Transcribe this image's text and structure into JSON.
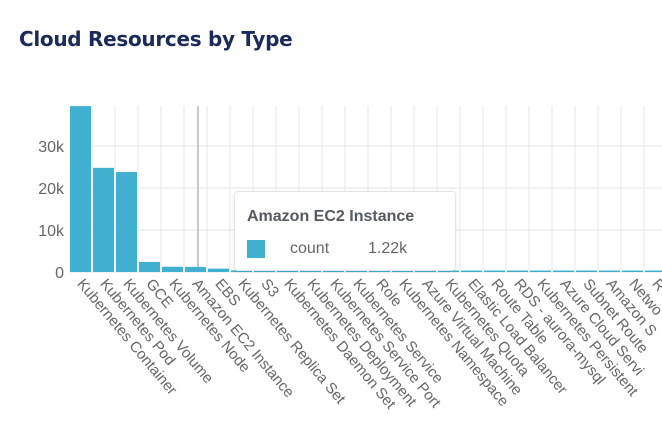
{
  "title": "Cloud Resources by Type",
  "colors": {
    "bar": "#3fb0cf",
    "title": "#1b2a5a",
    "grid": "#e6e6ea",
    "label": "#666666"
  },
  "chart_data": {
    "type": "bar",
    "title": "Cloud Resources by Type",
    "xlabel": "",
    "ylabel": "",
    "ylim": [
      0,
      39500
    ],
    "yticks": [
      0,
      10000,
      20000,
      30000
    ],
    "ytick_labels": [
      "0",
      "10k",
      "20k",
      "30k"
    ],
    "grid": true,
    "categories": [
      "Kubernetes Container",
      "Kubernetes Pod",
      "Kubernetes Volume",
      "GCE",
      "Kubernetes Node",
      "Amazon EC2 Instance",
      "EBS",
      "Kubernetes Replica Set",
      "S3",
      "Kubernetes Daemon Set",
      "Kubernetes Deployment",
      "Kubernetes Service Port",
      "Kubernetes Service",
      "Role",
      "Kubernetes Namespace",
      "Azure Virtual Machine",
      "Kubernetes Quota",
      "Elastic Load Balancer",
      "Route Table",
      "RDS - aurora-mysql",
      "Kubernetes Persistent",
      "Azure Cloud Servi",
      "Subnet Route",
      "Amazon S",
      "Netwo",
      "R"
    ],
    "series": [
      {
        "name": "count",
        "values": [
          39500,
          24800,
          23800,
          2400,
          1250,
          1220,
          800,
          400,
          300,
          250,
          220,
          200,
          190,
          180,
          170,
          160,
          150,
          140,
          130,
          120,
          110,
          100,
          100,
          90,
          90,
          80
        ]
      }
    ]
  },
  "tooltip": {
    "category": "Amazon EC2 Instance",
    "series": "count",
    "value": "1.22k"
  }
}
